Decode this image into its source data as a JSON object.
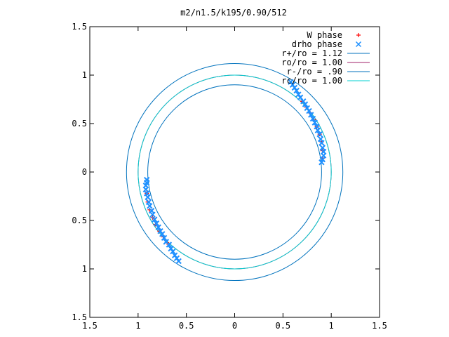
{
  "chart_data": {
    "type": "scatter",
    "title": "m2/n1.5/k195/0.90/512",
    "xlim": [
      -1.5,
      1.5
    ],
    "ylim": [
      -1.5,
      1.5
    ],
    "x_ticks": [
      -1.5,
      -1,
      -0.5,
      0,
      0.5,
      1,
      1.5
    ],
    "y_ticks": [
      -1.5,
      -1,
      -0.5,
      0,
      0.5,
      1,
      1.5
    ],
    "x_tick_labels": [
      "1.5",
      "1",
      "0.5",
      "0",
      "0.5",
      "1",
      "1.5"
    ],
    "y_tick_labels": [
      "1.5",
      "1",
      "0.5",
      "0",
      "0.5",
      "1",
      "1.5"
    ],
    "xlabel": "",
    "ylabel": "",
    "grid": false,
    "legend_position": "top-right",
    "series": [
      {
        "name": "W phase",
        "kind": "points",
        "marker": "+",
        "color": "#ff0000",
        "points": [
          [
            0.7,
            0.73
          ],
          [
            0.74,
            0.67
          ],
          [
            0.78,
            0.61
          ],
          [
            0.82,
            0.54
          ],
          [
            0.85,
            0.47
          ],
          [
            0.88,
            0.39
          ],
          [
            0.9,
            0.31
          ],
          [
            0.91,
            0.22
          ],
          [
            0.91,
            0.14
          ],
          [
            -0.7,
            -0.73
          ],
          [
            -0.74,
            -0.67
          ],
          [
            -0.78,
            -0.61
          ],
          [
            -0.82,
            -0.54
          ],
          [
            -0.85,
            -0.47
          ],
          [
            -0.88,
            -0.39
          ],
          [
            -0.9,
            -0.31
          ],
          [
            -0.91,
            -0.22
          ]
        ]
      },
      {
        "name": "drho phase",
        "kind": "points",
        "marker": "x",
        "color": "#1e90ff",
        "points": [
          [
            0.58,
            0.93
          ],
          [
            0.6,
            0.9
          ],
          [
            0.62,
            0.87
          ],
          [
            0.64,
            0.84
          ],
          [
            0.66,
            0.8
          ],
          [
            0.68,
            0.77
          ],
          [
            0.71,
            0.73
          ],
          [
            0.73,
            0.7
          ],
          [
            0.75,
            0.66
          ],
          [
            0.77,
            0.63
          ],
          [
            0.79,
            0.59
          ],
          [
            0.81,
            0.55
          ],
          [
            0.83,
            0.51
          ],
          [
            0.85,
            0.47
          ],
          [
            0.86,
            0.43
          ],
          [
            0.88,
            0.39
          ],
          [
            0.89,
            0.34
          ],
          [
            0.9,
            0.3
          ],
          [
            0.91,
            0.25
          ],
          [
            0.92,
            0.21
          ],
          [
            0.92,
            0.17
          ],
          [
            0.91,
            0.13
          ],
          [
            0.9,
            0.1
          ],
          [
            -0.91,
            -0.08
          ],
          [
            -0.91,
            -0.11
          ],
          [
            -0.92,
            -0.14
          ],
          [
            -0.92,
            -0.18
          ],
          [
            -0.91,
            -0.22
          ],
          [
            -0.9,
            -0.26
          ],
          [
            -0.89,
            -0.31
          ],
          [
            -0.88,
            -0.35
          ],
          [
            -0.86,
            -0.4
          ],
          [
            -0.85,
            -0.44
          ],
          [
            -0.83,
            -0.49
          ],
          [
            -0.81,
            -0.53
          ],
          [
            -0.79,
            -0.57
          ],
          [
            -0.77,
            -0.61
          ],
          [
            -0.75,
            -0.64
          ],
          [
            -0.73,
            -0.68
          ],
          [
            -0.71,
            -0.72
          ],
          [
            -0.68,
            -0.75
          ],
          [
            -0.66,
            -0.79
          ],
          [
            -0.64,
            -0.82
          ],
          [
            -0.62,
            -0.86
          ],
          [
            -0.6,
            -0.89
          ],
          [
            -0.58,
            -0.92
          ]
        ]
      },
      {
        "name": "r+/ro = 1.12",
        "kind": "circle",
        "radius": 1.12,
        "color": "#0072bd"
      },
      {
        "name": "ro/ro = 1.00",
        "kind": "circle",
        "radius": 1.0,
        "color": "#a0206a"
      },
      {
        "name": "r-/ro = .90",
        "kind": "circle",
        "radius": 0.9,
        "color": "#0072bd"
      },
      {
        "name": "rc/ro = 1.00",
        "kind": "circle",
        "radius": 1.0,
        "color": "#00d0d0"
      }
    ]
  }
}
